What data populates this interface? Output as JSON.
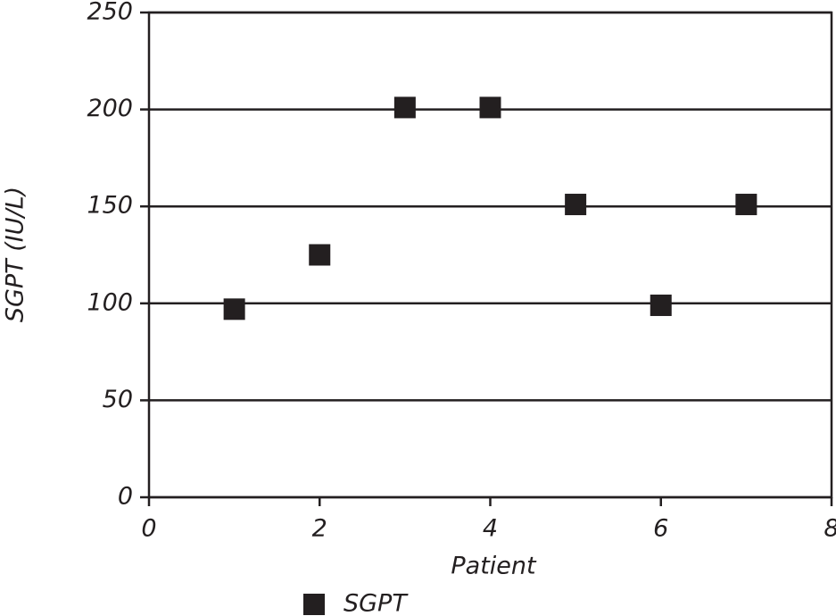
{
  "chart_data": {
    "type": "scatter",
    "x_label": "Patient",
    "y_label": "SGPT (IU/L)",
    "series": [
      {
        "name": "SGPT",
        "color": "#231f20",
        "x": [
          1,
          2,
          3,
          4,
          5,
          6,
          7
        ],
        "values": [
          97,
          125,
          201,
          201,
          151,
          99,
          151
        ]
      }
    ],
    "xlim": [
      0,
      8
    ],
    "xticks": [
      0,
      2,
      4,
      6,
      8
    ],
    "ylim": [
      0,
      250
    ],
    "yticks": [
      0,
      50,
      100,
      150,
      200,
      250
    ],
    "grid": true,
    "legend": "bottom"
  }
}
